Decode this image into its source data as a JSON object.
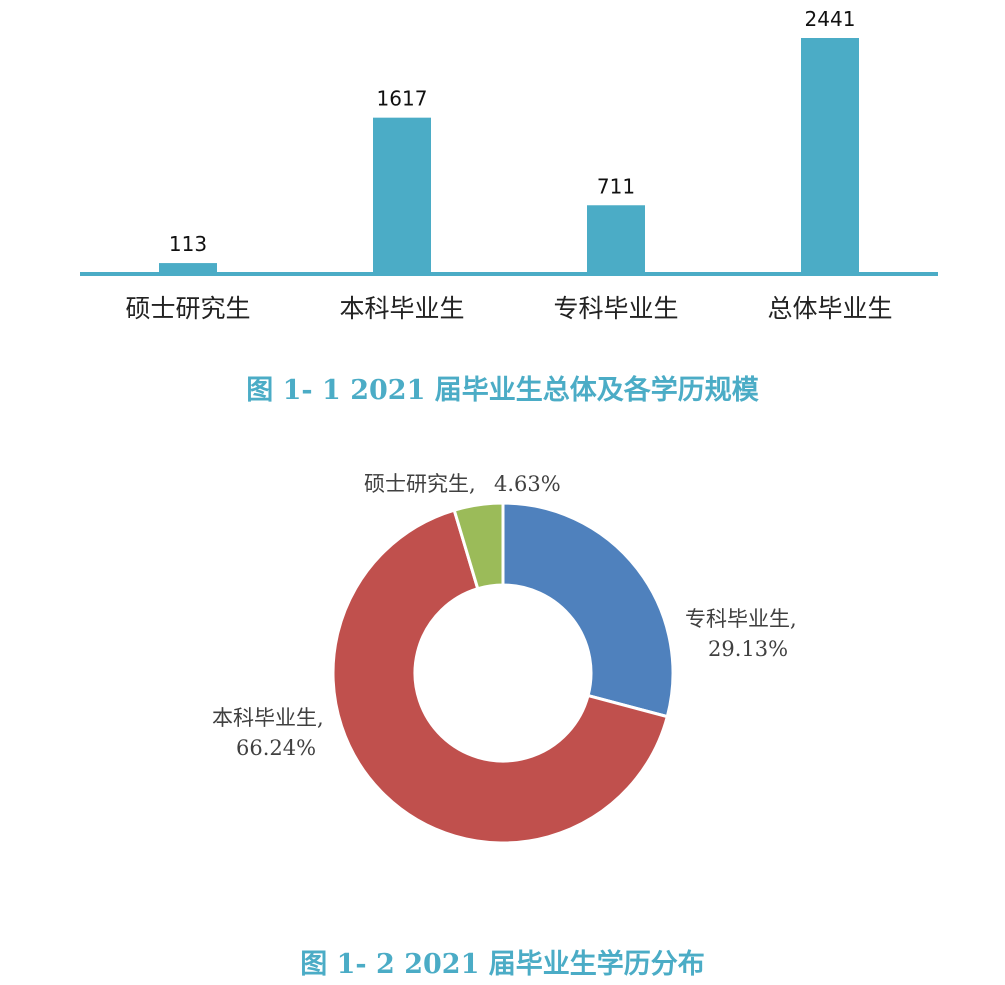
{
  "chart_data": [
    {
      "type": "bar",
      "categories": [
        "硕士研究生",
        "本科毕业生",
        "专科毕业生",
        "总体毕业生"
      ],
      "values": [
        113,
        1617,
        711,
        2441
      ],
      "value_labels": [
        "113",
        "1617",
        "711",
        "2441"
      ],
      "title": "图 1- 1  2021 届毕业生总体及各学历规模",
      "xlabel": "",
      "ylabel": "",
      "ylim": [
        0,
        2441
      ],
      "grid": false,
      "legend": "none",
      "color": "#4bacc6"
    },
    {
      "type": "pie",
      "donut": true,
      "title": "图 1- 2  2021 届毕业生学历分布",
      "slices": [
        {
          "category": "专科毕业生",
          "value": 29.13,
          "label_name": "专科毕业生,",
          "label_value": "29.13%",
          "color": "#4f81bd"
        },
        {
          "category": "本科毕业生",
          "value": 66.24,
          "label_name": "本科毕业生,",
          "label_value": "66.24%",
          "color": "#c0504d"
        },
        {
          "category": "硕士研究生",
          "value": 4.63,
          "label_name": "硕士研究生,",
          "label_value": "4.63%",
          "color": "#9bbb59"
        }
      ],
      "legend": "none"
    }
  ]
}
